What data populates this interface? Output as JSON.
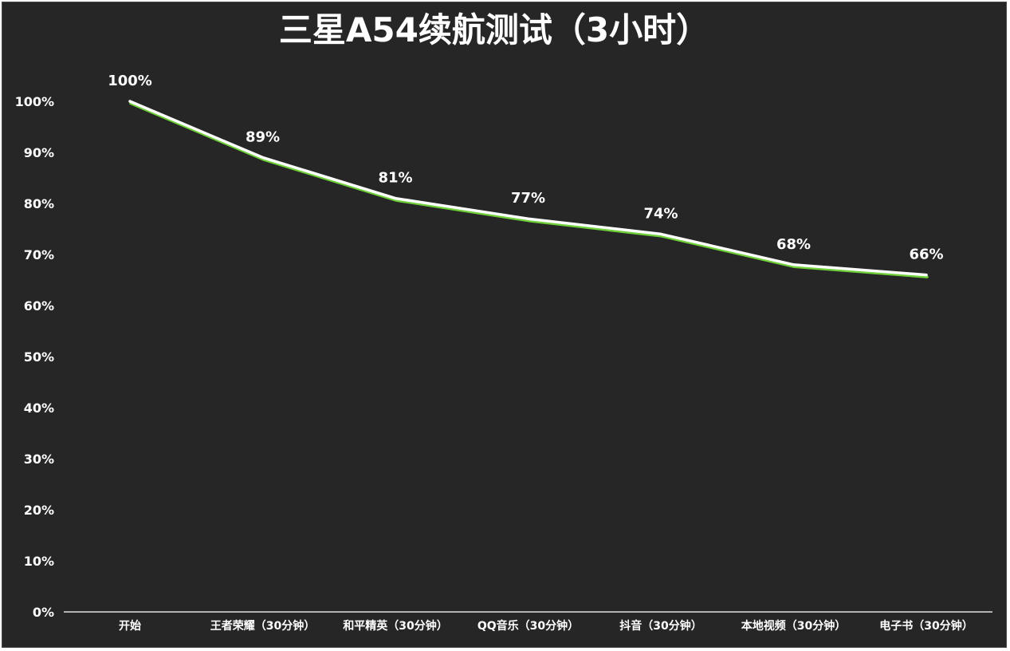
{
  "chart_data": {
    "type": "line",
    "title": "三星A54续航测试（3小时）",
    "xlabel": "",
    "ylabel": "",
    "categories": [
      "开始",
      "王者荣耀（30分钟）",
      "和平精英（30分钟）",
      "QQ音乐（30分钟）",
      "抖音（30分钟）",
      "本地视频（30分钟）",
      "电子书（30分钟）"
    ],
    "series": [
      {
        "values": [
          100,
          89,
          81,
          77,
          74,
          68,
          66
        ]
      }
    ],
    "data_labels": [
      "100%",
      "89%",
      "81%",
      "77%",
      "74%",
      "68%",
      "66%"
    ],
    "ylim": [
      0,
      100
    ],
    "yticks": [
      "0%",
      "10%",
      "20%",
      "30%",
      "40%",
      "50%",
      "60%",
      "70%",
      "80%",
      "90%",
      "100%"
    ],
    "grid": false,
    "legend": "none",
    "colors": {
      "background": "#262626",
      "line": "#ffffff",
      "line_shadow": "#6fcf3a",
      "drop_lines": "#d9d9d9",
      "text": "#ffffff"
    }
  }
}
